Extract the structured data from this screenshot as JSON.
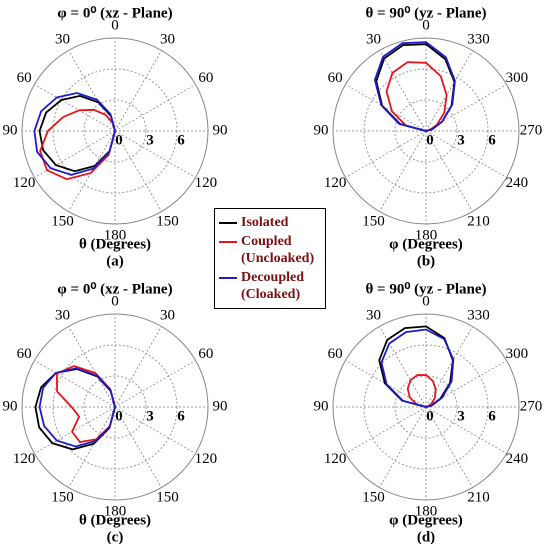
{
  "chart_data": [
    {
      "type": "polar",
      "title": "φ = 0⁰ (xz - Plane)",
      "xlabel": "θ (Degrees)",
      "panel": "(a)",
      "rlim": [
        0,
        9
      ],
      "rticks": [
        0,
        3,
        6
      ],
      "thetaticks": [
        0,
        30,
        60,
        90,
        120,
        150,
        180,
        {
          "value": 210,
          "label": "150"
        },
        {
          "value": 240,
          "label": "120"
        },
        {
          "value": 270,
          "label": "90"
        },
        {
          "value": 300,
          "label": "60"
        },
        {
          "value": 330,
          "label": "30"
        }
      ],
      "x": [
        0,
        15,
        30,
        45,
        60,
        75,
        90,
        105,
        120,
        135,
        150,
        165,
        180
      ],
      "series": [
        {
          "name": "Isolated",
          "color": "#000000",
          "values": [
            0,
            1.5,
            3.2,
            4.8,
            6.0,
            6.9,
            7.3,
            7.2,
            6.6,
            5.5,
            3.9,
            2.0,
            0
          ]
        },
        {
          "name": "Coupled (Uncloaked)",
          "color": "#e8141c",
          "values": [
            0,
            0.8,
            1.8,
            2.9,
            4.0,
            5.2,
            6.5,
            7.5,
            7.6,
            6.6,
            4.7,
            2.4,
            0
          ]
        },
        {
          "name": "Decoupled (Cloaked)",
          "color": "#1c1ccc",
          "values": [
            0,
            1.7,
            3.5,
            5.2,
            6.5,
            7.4,
            7.8,
            7.8,
            7.2,
            6.0,
            4.2,
            2.1,
            0
          ]
        }
      ]
    },
    {
      "type": "polar",
      "title": "θ = 90⁰ (yz - Plane)",
      "xlabel": "φ (Degrees)",
      "panel": "(b)",
      "rlim": [
        0,
        9
      ],
      "rticks": [
        0,
        3,
        6
      ],
      "thetaticks": [
        0,
        30,
        60,
        90,
        120,
        150,
        180,
        210,
        240,
        270,
        300,
        330
      ],
      "x": [
        -90,
        -75,
        -60,
        -45,
        -30,
        -15,
        0,
        15,
        30,
        45,
        60,
        75,
        90
      ],
      "series": [
        {
          "name": "Isolated",
          "color": "#000000",
          "values": [
            0,
            0.6,
            1.8,
            3.5,
            5.5,
            7.2,
            8.4,
            8.6,
            8.1,
            6.8,
            4.9,
            2.6,
            0
          ]
        },
        {
          "name": "Coupled (Uncloaked)",
          "color": "#e8141c",
          "values": [
            0,
            0.4,
            1.2,
            2.5,
            4.0,
            5.5,
            6.6,
            6.9,
            6.5,
            5.4,
            3.8,
            2.0,
            0
          ]
        },
        {
          "name": "Decoupled (Cloaked)",
          "color": "#1c1ccc",
          "values": [
            0,
            0.6,
            1.8,
            3.6,
            5.6,
            7.4,
            8.6,
            8.8,
            8.3,
            7.0,
            5.0,
            2.7,
            0
          ]
        }
      ]
    },
    {
      "type": "polar",
      "title": "φ = 0⁰ (xz - Plane)",
      "xlabel": "θ (Degrees)",
      "panel": "(c)",
      "rlim": [
        0,
        9
      ],
      "rticks": [
        0,
        3,
        6
      ],
      "thetaticks": [
        0,
        30,
        60,
        90,
        120,
        150,
        180,
        {
          "value": 210,
          "label": "150"
        },
        {
          "value": 240,
          "label": "120"
        },
        {
          "value": 270,
          "label": "90"
        },
        {
          "value": 300,
          "label": "60"
        },
        {
          "value": 330,
          "label": "30"
        }
      ],
      "x": [
        0,
        15,
        30,
        45,
        60,
        75,
        90,
        105,
        120,
        135,
        150,
        165,
        180
      ],
      "series": [
        {
          "name": "Isolated",
          "color": "#000000",
          "values": [
            0,
            1.6,
            3.4,
            5.2,
            6.6,
            7.4,
            7.7,
            7.6,
            7.0,
            5.8,
            4.1,
            2.1,
            0
          ]
        },
        {
          "name": "Coupled (Uncloaked)",
          "color": "#e8141c",
          "values": [
            0,
            1.8,
            3.8,
            5.6,
            6.5,
            5.8,
            4.2,
            3.6,
            4.8,
            4.8,
            3.6,
            1.9,
            0
          ]
        },
        {
          "name": "Decoupled (Cloaked)",
          "color": "#1c1ccc",
          "values": [
            0,
            1.7,
            3.5,
            5.3,
            6.6,
            7.2,
            7.3,
            7.1,
            6.5,
            5.4,
            3.8,
            2.0,
            0
          ]
        }
      ]
    },
    {
      "type": "polar",
      "title": "θ = 90⁰ (yz - Plane)",
      "xlabel": "φ (Degrees)",
      "panel": "(d)",
      "rlim": [
        0,
        9
      ],
      "rticks": [
        0,
        3,
        6
      ],
      "thetaticks": [
        0,
        30,
        60,
        90,
        120,
        150,
        180,
        210,
        240,
        270,
        300,
        330
      ],
      "x": [
        -90,
        -75,
        -60,
        -45,
        -30,
        -15,
        0,
        15,
        30,
        45,
        60,
        75,
        90
      ],
      "series": [
        {
          "name": "Isolated",
          "color": "#000000",
          "values": [
            0,
            0.5,
            1.6,
            3.3,
            5.2,
            6.9,
            7.8,
            7.9,
            7.5,
            6.4,
            4.6,
            2.4,
            0
          ]
        },
        {
          "name": "Coupled (Uncloaked)",
          "color": "#e8141c",
          "values": [
            0,
            0.2,
            0.6,
            1.2,
            1.9,
            2.6,
            3.1,
            3.2,
            3.0,
            2.5,
            1.8,
            0.9,
            0
          ]
        },
        {
          "name": "Decoupled (Cloaked)",
          "color": "#1c1ccc",
          "values": [
            0,
            0.6,
            1.8,
            3.5,
            5.3,
            6.8,
            7.5,
            7.5,
            7.1,
            6.1,
            4.4,
            2.3,
            0
          ]
        }
      ]
    }
  ]
}
